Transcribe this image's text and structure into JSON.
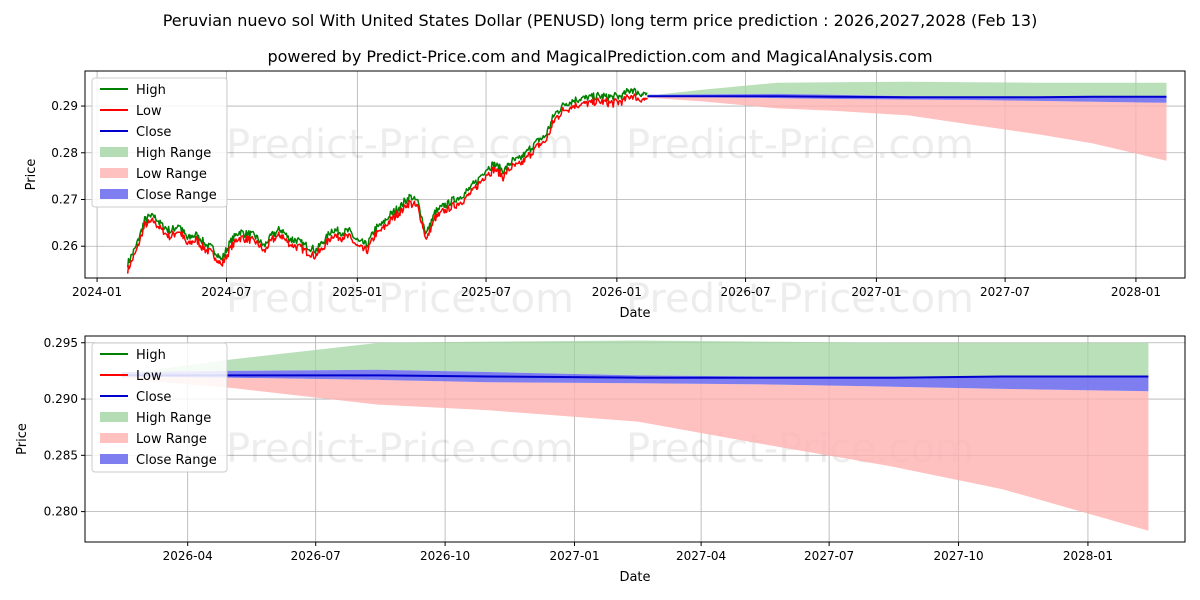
{
  "title_line1": "Peruvian nuevo sol With United States Dollar (PENUSD) long term price prediction : 2026,2027,2028 (Feb 13)",
  "title_line2": "powered by Predict-Price.com and MagicalPrediction.com and MagicalAnalysis.com",
  "watermark": "Predict-Price.com",
  "colors": {
    "high": "#008000",
    "low": "#ff0000",
    "close": "#0000cc",
    "high_range": "#a3d5a3",
    "low_range": "#ffb0b0",
    "close_range": "#7070f0",
    "grid": "#b0b0b0"
  },
  "chart_data": [
    {
      "type": "line",
      "xlabel": "Date",
      "ylabel": "Price",
      "xlim": [
        "2023-12-15",
        "2028-03-10"
      ],
      "ylim": [
        0.2532,
        0.2975
      ],
      "xticks": [
        {
          "date": "2024-01-01",
          "label": "2024-01"
        },
        {
          "date": "2024-07-01",
          "label": "2024-07"
        },
        {
          "date": "2025-01-01",
          "label": "2025-01"
        },
        {
          "date": "2025-07-01",
          "label": "2025-07"
        },
        {
          "date": "2026-01-01",
          "label": "2026-01"
        },
        {
          "date": "2026-07-01",
          "label": "2026-07"
        },
        {
          "date": "2027-01-01",
          "label": "2027-01"
        },
        {
          "date": "2027-07-01",
          "label": "2027-07"
        },
        {
          "date": "2028-01-01",
          "label": "2028-01"
        }
      ],
      "yticks": [
        0.26,
        0.27,
        0.28,
        0.29
      ],
      "ytick_labels": [
        "0.26",
        "0.27",
        "0.28",
        "0.29"
      ],
      "legend": {
        "position": "top-left",
        "entries": [
          {
            "label": "High",
            "key": "high",
            "kind": "line"
          },
          {
            "label": "Low",
            "key": "low",
            "kind": "line"
          },
          {
            "label": "Close",
            "key": "close",
            "kind": "line"
          },
          {
            "label": "High Range",
            "key": "high_range",
            "kind": "patch"
          },
          {
            "label": "Low Range",
            "key": "low_range",
            "kind": "patch"
          },
          {
            "label": "Close Range",
            "key": "close_range",
            "kind": "patch"
          }
        ]
      },
      "history_dates": [
        "2024-02-13",
        "2024-02-25",
        "2024-03-08",
        "2024-03-20",
        "2024-04-01",
        "2024-04-13",
        "2024-04-25",
        "2024-05-07",
        "2024-05-19",
        "2024-05-31",
        "2024-06-12",
        "2024-06-24",
        "2024-07-06",
        "2024-07-18",
        "2024-07-30",
        "2024-08-11",
        "2024-08-23",
        "2024-09-04",
        "2024-09-16",
        "2024-09-28",
        "2024-10-10",
        "2024-10-22",
        "2024-11-03",
        "2024-11-15",
        "2024-11-27",
        "2024-12-09",
        "2024-12-21",
        "2025-01-02",
        "2025-01-14",
        "2025-01-26",
        "2025-02-07",
        "2025-02-19",
        "2025-03-03",
        "2025-03-15",
        "2025-03-27",
        "2025-04-08",
        "2025-04-20",
        "2025-05-02",
        "2025-05-14",
        "2025-05-26",
        "2025-06-07",
        "2025-06-19",
        "2025-07-01",
        "2025-07-13",
        "2025-07-25",
        "2025-08-06",
        "2025-08-18",
        "2025-08-30",
        "2025-09-11",
        "2025-09-23",
        "2025-10-05",
        "2025-10-17",
        "2025-10-29",
        "2025-11-10",
        "2025-11-22",
        "2025-12-04",
        "2025-12-16",
        "2025-12-28",
        "2026-01-09",
        "2026-01-21",
        "2026-02-02",
        "2026-02-13"
      ],
      "history_close": [
        0.2555,
        0.2595,
        0.265,
        0.266,
        0.264,
        0.2625,
        0.264,
        0.261,
        0.262,
        0.26,
        0.259,
        0.2565,
        0.26,
        0.2625,
        0.262,
        0.2615,
        0.2595,
        0.262,
        0.263,
        0.261,
        0.2605,
        0.2595,
        0.2585,
        0.2605,
        0.263,
        0.2625,
        0.2625,
        0.2605,
        0.2595,
        0.263,
        0.2645,
        0.2665,
        0.268,
        0.27,
        0.269,
        0.262,
        0.2665,
        0.268,
        0.269,
        0.27,
        0.2715,
        0.2735,
        0.276,
        0.277,
        0.2755,
        0.2775,
        0.278,
        0.28,
        0.282,
        0.283,
        0.2875,
        0.2895,
        0.2905,
        0.291,
        0.2912,
        0.2915,
        0.2914,
        0.2913,
        0.2916,
        0.293,
        0.292,
        0.2921
      ],
      "history_high_offset": 0.0006,
      "history_low_offset": 0.0006,
      "forecast_dates": [
        "2026-02-13",
        "2026-05-01",
        "2026-08-15",
        "2026-11-01",
        "2027-02-15",
        "2027-05-15",
        "2027-08-15",
        "2027-11-01",
        "2028-02-13"
      ],
      "forecast": {
        "high_range_top": [
          0.2922,
          0.2935,
          0.295,
          0.2951,
          0.2952,
          0.2951,
          0.295,
          0.295,
          0.295
        ],
        "low_range_bottom": [
          0.2918,
          0.291,
          0.2895,
          0.289,
          0.288,
          0.286,
          0.284,
          0.282,
          0.2783
        ],
        "close_range_top": [
          0.2924,
          0.2925,
          0.2926,
          0.2924,
          0.2921,
          0.292,
          0.292,
          0.292,
          0.292
        ],
        "close_range_bottom": [
          0.292,
          0.2919,
          0.2917,
          0.2915,
          0.2914,
          0.2913,
          0.2911,
          0.2909,
          0.2907
        ],
        "close": [
          0.2921,
          0.2921,
          0.2921,
          0.292,
          0.2919,
          0.2919,
          0.2919,
          0.292,
          0.292
        ]
      }
    },
    {
      "type": "line",
      "xlabel": "Date",
      "ylabel": "Price",
      "xlim": [
        "2026-01-18",
        "2028-03-10"
      ],
      "ylim": [
        0.2773,
        0.2956
      ],
      "xticks": [
        {
          "date": "2026-04-01",
          "label": "2026-04"
        },
        {
          "date": "2026-07-01",
          "label": "2026-07"
        },
        {
          "date": "2026-10-01",
          "label": "2026-10"
        },
        {
          "date": "2027-01-01",
          "label": "2027-01"
        },
        {
          "date": "2027-04-01",
          "label": "2027-04"
        },
        {
          "date": "2027-07-01",
          "label": "2027-07"
        },
        {
          "date": "2027-10-01",
          "label": "2027-10"
        },
        {
          "date": "2028-01-01",
          "label": "2028-01"
        }
      ],
      "yticks": [
        0.28,
        0.285,
        0.29,
        0.295
      ],
      "ytick_labels": [
        "0.280",
        "0.285",
        "0.290",
        "0.295"
      ],
      "legend": {
        "position": "top-left",
        "entries": [
          {
            "label": "High",
            "key": "high",
            "kind": "line"
          },
          {
            "label": "Low",
            "key": "low",
            "kind": "line"
          },
          {
            "label": "Close",
            "key": "close",
            "kind": "line"
          },
          {
            "label": "High Range",
            "key": "high_range",
            "kind": "patch"
          },
          {
            "label": "Low Range",
            "key": "low_range",
            "kind": "patch"
          },
          {
            "label": "Close Range",
            "key": "close_range",
            "kind": "patch"
          }
        ]
      },
      "forecast_dates": [
        "2026-02-13",
        "2026-05-01",
        "2026-08-15",
        "2026-11-01",
        "2027-02-15",
        "2027-05-15",
        "2027-08-15",
        "2027-11-01",
        "2028-02-13"
      ],
      "forecast": {
        "high_range_top": [
          0.2922,
          0.2935,
          0.295,
          0.2951,
          0.2952,
          0.2951,
          0.295,
          0.295,
          0.295
        ],
        "low_range_bottom": [
          0.2918,
          0.291,
          0.2895,
          0.289,
          0.288,
          0.286,
          0.284,
          0.282,
          0.2783
        ],
        "close_range_top": [
          0.2924,
          0.2925,
          0.2926,
          0.2924,
          0.2921,
          0.292,
          0.292,
          0.292,
          0.292
        ],
        "close_range_bottom": [
          0.292,
          0.2919,
          0.2917,
          0.2915,
          0.2914,
          0.2913,
          0.2911,
          0.2909,
          0.2907
        ],
        "close": [
          0.2921,
          0.2921,
          0.2921,
          0.292,
          0.2919,
          0.2919,
          0.2919,
          0.292,
          0.292
        ]
      }
    }
  ]
}
